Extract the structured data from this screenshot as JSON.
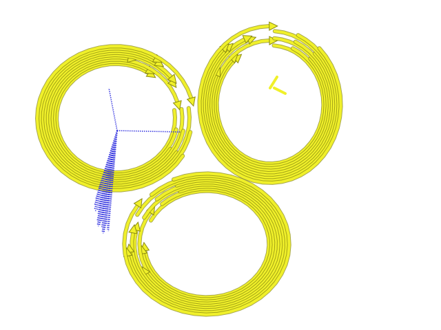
{
  "scene": {
    "background": "#ffffff",
    "strand_color": "#f0f02a",
    "strand_highlight": "#ffff66",
    "strand_shadow": "#8a8a10",
    "ligand_color": "#3a3ae0",
    "rings": [
      {
        "id": "top-left",
        "strands": 9
      },
      {
        "id": "top-right",
        "strands": 9
      },
      {
        "id": "bottom",
        "strands": 9
      }
    ],
    "ligand_lines": 44
  }
}
